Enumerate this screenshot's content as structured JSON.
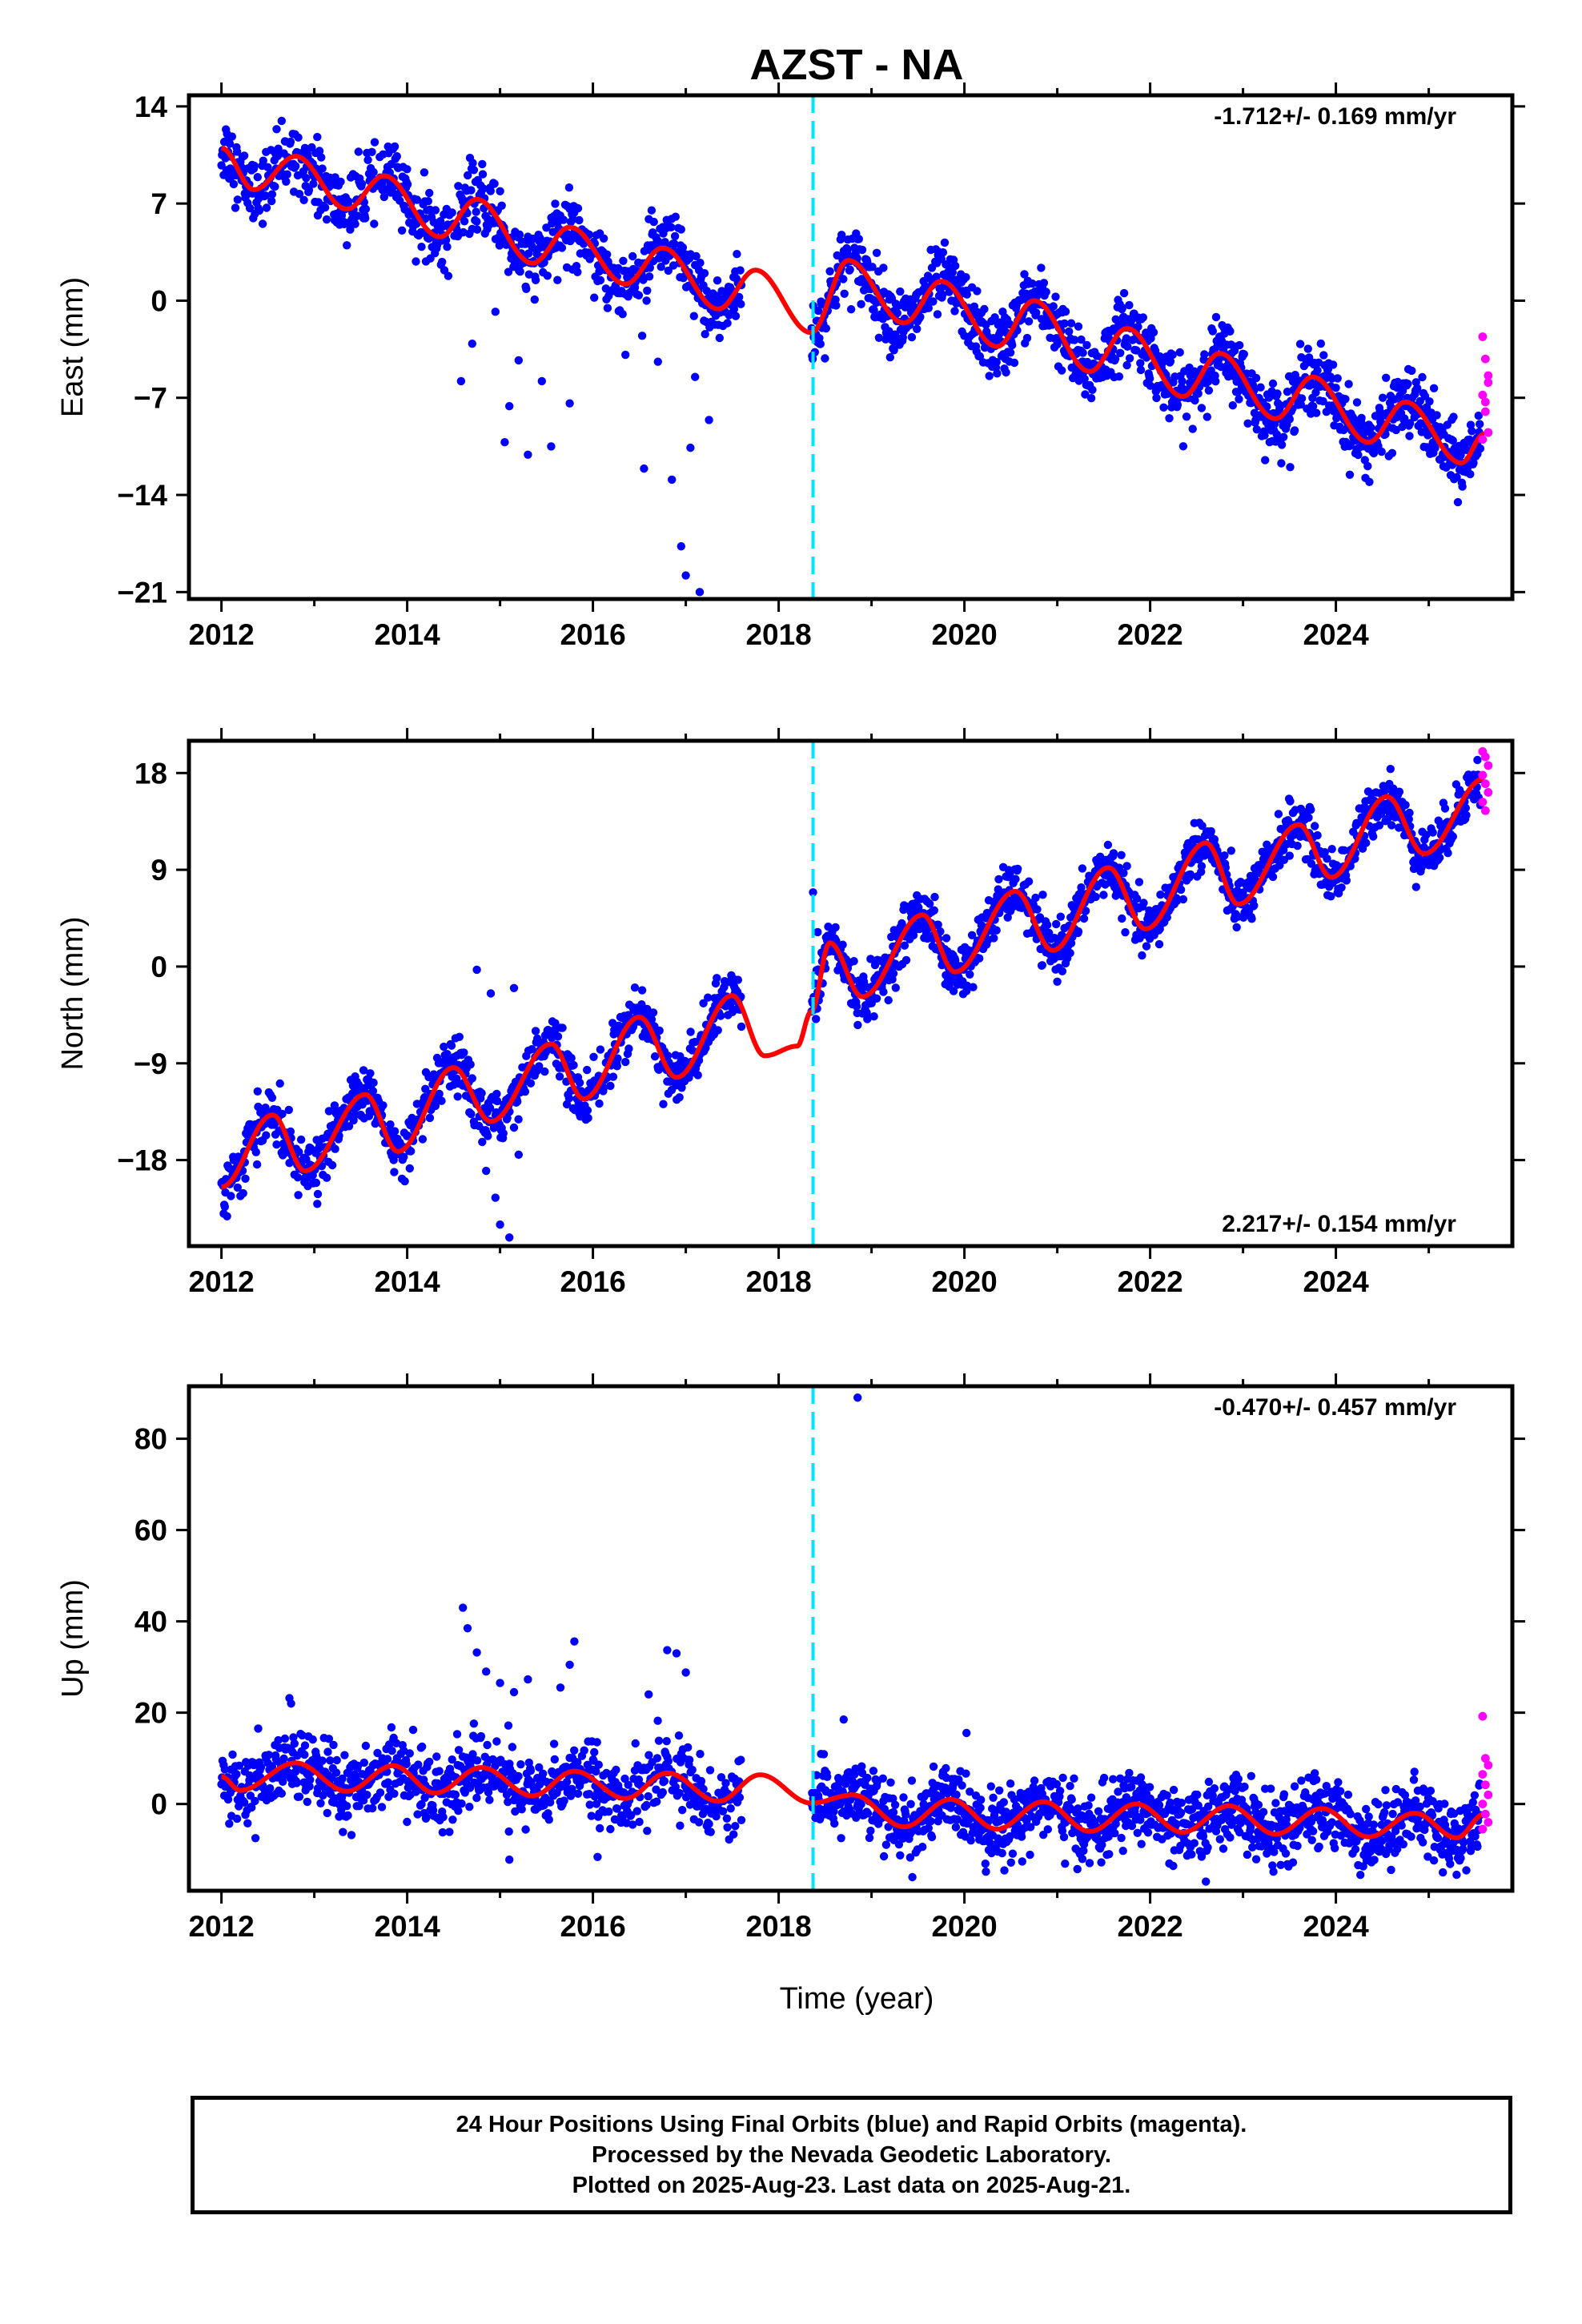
{
  "title": "AZST - NA",
  "xlabel": "Time (year)",
  "footer": {
    "line1": "24 Hour Positions Using Final Orbits (blue) and Rapid Orbits (magenta).",
    "line2": "Processed by the Nevada Geodetic Laboratory.",
    "line3": "Plotted on 2025-Aug-23. Last data on 2025-Aug-21."
  },
  "colors": {
    "final_orbits": "#0000ff",
    "rapid_orbits": "#ff00ff",
    "model": "#ff0000",
    "event_line": "#00e5ff",
    "frame": "#000000"
  },
  "chart_data": [
    {
      "type": "scatter",
      "component": "East",
      "ylabel": "East (mm)",
      "rate_text": "-1.712+/- 0.169 mm/yr",
      "rate_position": "top-right",
      "xlim": [
        2011.65,
        2025.9
      ],
      "ylim": [
        -21.5,
        14.8
      ],
      "xticks": [
        2012,
        2014,
        2016,
        2018,
        2020,
        2022,
        2024
      ],
      "yticks": [
        -21,
        -14,
        -7,
        0,
        7,
        14
      ],
      "ytick_labels": [
        "−21",
        "−14",
        "−7",
        "0",
        "7",
        "14"
      ],
      "event_line_x": 2018.37,
      "data_gap": [
        2017.6,
        2018.35
      ],
      "model": {
        "t0": 2012.0,
        "intercept": 11.0,
        "rate": -1.712,
        "annual_amp": 1.8,
        "annual_phase": 0.58,
        "offset_at_event": 2.3,
        "curve_y": [
          11.0,
          8.0,
          10.4,
          6.6,
          9.0,
          4.6,
          7.3,
          2.7,
          5.3,
          1.2,
          3.8,
          -0.6,
          2.2,
          -2.3,
          2.9,
          -1.6,
          1.4,
          -3.3,
          0.0,
          -5.1,
          -2.0,
          -6.9,
          -3.8,
          -8.5,
          -5.5,
          -10.2,
          -7.3,
          -11.7,
          -9.6
        ],
        "curve_x": [
          2012.0,
          2012.35,
          2012.8,
          2013.35,
          2013.75,
          2014.35,
          2014.75,
          2015.35,
          2015.75,
          2016.35,
          2016.75,
          2017.35,
          2017.75,
          2018.35,
          2018.75,
          2019.35,
          2019.75,
          2020.35,
          2020.75,
          2021.35,
          2021.75,
          2022.35,
          2022.75,
          2023.35,
          2023.75,
          2024.35,
          2024.75,
          2025.35,
          2025.6
        ]
      },
      "scatter_sd": 1.2,
      "outliers": [
        {
          "x": 2014.58,
          "y": -5.8
        },
        {
          "x": 2014.7,
          "y": -3.1
        },
        {
          "x": 2014.95,
          "y": -0.8
        },
        {
          "x": 2015.05,
          "y": -10.2
        },
        {
          "x": 2015.1,
          "y": -7.6
        },
        {
          "x": 2015.2,
          "y": -4.3
        },
        {
          "x": 2015.3,
          "y": -11.1
        },
        {
          "x": 2015.45,
          "y": -5.8
        },
        {
          "x": 2015.55,
          "y": -10.5
        },
        {
          "x": 2015.75,
          "y": -7.4
        },
        {
          "x": 2016.35,
          "y": -3.9
        },
        {
          "x": 2016.55,
          "y": -12.1
        },
        {
          "x": 2016.7,
          "y": -4.4
        },
        {
          "x": 2016.85,
          "y": -12.9
        },
        {
          "x": 2016.95,
          "y": -17.7
        },
        {
          "x": 2017.0,
          "y": -19.8
        },
        {
          "x": 2017.05,
          "y": -10.6
        },
        {
          "x": 2017.1,
          "y": -5.5
        },
        {
          "x": 2017.15,
          "y": -21.0
        },
        {
          "x": 2017.25,
          "y": -8.6
        }
      ],
      "rapid_orbits": {
        "x_range": [
          2025.58,
          2025.64
        ],
        "y_values": [
          -2.6,
          -4.2,
          -5.4,
          -6.8,
          -8.0,
          -9.5,
          -10.0,
          -7.3,
          -5.9
        ]
      }
    },
    {
      "type": "scatter",
      "component": "North",
      "ylabel": "North (mm)",
      "rate_text": "2.217+/- 0.154 mm/yr",
      "rate_position": "bottom-right",
      "xlim": [
        2011.65,
        2025.9
      ],
      "ylim": [
        -26,
        21
      ],
      "xticks": [
        2012,
        2014,
        2016,
        2018,
        2020,
        2022,
        2024
      ],
      "yticks": [
        -18,
        -9,
        0,
        9,
        18
      ],
      "ytick_labels": [
        "−18",
        "−9",
        "0",
        "9",
        "18"
      ],
      "event_line_x": 2018.37,
      "data_gap": [
        2017.6,
        2018.35
      ],
      "model": {
        "curve_x": [
          2012.0,
          2012.55,
          2012.9,
          2013.55,
          2013.9,
          2014.5,
          2014.9,
          2015.55,
          2015.9,
          2016.5,
          2016.9,
          2017.5,
          2017.85,
          2018.2,
          2018.35,
          2018.55,
          2018.9,
          2019.55,
          2019.9,
          2020.55,
          2020.95,
          2021.55,
          2021.95,
          2022.6,
          2022.95,
          2023.6,
          2023.95,
          2024.55,
          2024.95,
          2025.6
        ],
        "curve_y": [
          -20.5,
          -13.8,
          -19.0,
          -11.9,
          -17.2,
          -9.4,
          -14.4,
          -7.2,
          -12.3,
          -4.7,
          -10.3,
          -2.7,
          -8.3,
          -7.4,
          -4.2,
          2.2,
          -2.8,
          4.8,
          -0.5,
          7.0,
          1.5,
          9.2,
          3.5,
          11.5,
          5.8,
          13.2,
          8.3,
          15.8,
          10.5,
          17.5
        ]
      },
      "scatter_sd": 1.2,
      "outliers": [
        {
          "x": 2014.75,
          "y": -0.3
        },
        {
          "x": 2014.9,
          "y": -2.5
        },
        {
          "x": 2015.15,
          "y": -2.0
        },
        {
          "x": 2014.85,
          "y": -19.0
        },
        {
          "x": 2014.95,
          "y": -21.5
        },
        {
          "x": 2015.0,
          "y": -24.0
        },
        {
          "x": 2015.1,
          "y": -25.2
        },
        {
          "x": 2015.2,
          "y": -17.5
        },
        {
          "x": 2018.37,
          "y": 6.9
        },
        {
          "x": 2018.42,
          "y": 3.2
        }
      ],
      "rapid_orbits": {
        "x_range": [
          2025.58,
          2025.64
        ],
        "y_values": [
          20.0,
          19.5,
          18.7,
          17.8,
          17.0,
          16.2,
          15.3,
          14.5
        ]
      }
    },
    {
      "type": "scatter",
      "component": "Up",
      "ylabel": "Up (mm)",
      "rate_text": "-0.470+/- 0.457 mm/yr",
      "rate_position": "top-right",
      "xlim": [
        2011.65,
        2025.9
      ],
      "ylim": [
        -19,
        91.5
      ],
      "xticks": [
        2012,
        2014,
        2016,
        2018,
        2020,
        2022,
        2024
      ],
      "yticks": [
        0,
        20,
        40,
        60,
        80
      ],
      "ytick_labels": [
        "0",
        "20",
        "40",
        "60",
        "80"
      ],
      "event_line_x": 2018.37,
      "data_gap": [
        2017.6,
        2018.35
      ],
      "model": {
        "curve_x": [
          2012.0,
          2012.2,
          2012.8,
          2013.35,
          2013.85,
          2014.3,
          2014.8,
          2015.35,
          2015.8,
          2016.35,
          2016.8,
          2017.35,
          2017.8,
          2018.35,
          2018.8,
          2019.35,
          2019.85,
          2020.35,
          2020.85,
          2021.35,
          2021.85,
          2022.35,
          2022.85,
          2023.35,
          2023.85,
          2024.35,
          2024.85,
          2025.3,
          2025.6
        ],
        "curve_y": [
          6.0,
          3.0,
          9.0,
          2.8,
          8.4,
          2.4,
          8.0,
          1.8,
          7.2,
          1.2,
          6.8,
          0.6,
          6.4,
          0.2,
          2.0,
          -5.0,
          1.0,
          -5.5,
          0.5,
          -6.0,
          0.0,
          -6.2,
          -0.4,
          -6.6,
          -1.0,
          -7.2,
          -2.0,
          -7.4,
          -2.2
        ]
      },
      "scatter_sd": 3.8,
      "outliers": [
        {
          "x": 2014.6,
          "y": 43.0
        },
        {
          "x": 2014.65,
          "y": 38.5
        },
        {
          "x": 2014.75,
          "y": 33.2
        },
        {
          "x": 2014.85,
          "y": 29.0
        },
        {
          "x": 2015.0,
          "y": 26.5
        },
        {
          "x": 2015.15,
          "y": 24.5
        },
        {
          "x": 2015.3,
          "y": 27.3
        },
        {
          "x": 2015.8,
          "y": 35.6
        },
        {
          "x": 2015.75,
          "y": 30.5
        },
        {
          "x": 2015.65,
          "y": 25.5
        },
        {
          "x": 2016.8,
          "y": 33.7
        },
        {
          "x": 2016.9,
          "y": 33.0
        },
        {
          "x": 2017.0,
          "y": 28.8
        },
        {
          "x": 2016.6,
          "y": 24.0
        },
        {
          "x": 2015.1,
          "y": -12.2
        },
        {
          "x": 2016.05,
          "y": -11.6
        },
        {
          "x": 2018.85,
          "y": 89.0
        },
        {
          "x": 2018.7,
          "y": 18.5
        },
        {
          "x": 2022.6,
          "y": -17.0
        },
        {
          "x": 2025.3,
          "y": -15.5
        },
        {
          "x": 2012.75,
          "y": 22.0
        },
        {
          "x": 2013.4,
          "y": -6.8
        }
      ],
      "rapid_orbits": {
        "x_range": [
          2025.58,
          2025.64
        ],
        "y_values": [
          19.2,
          10.0,
          8.5,
          6.5,
          4.2,
          2.0,
          0.0,
          -2.2,
          -4.0,
          -5.5
        ]
      }
    }
  ]
}
